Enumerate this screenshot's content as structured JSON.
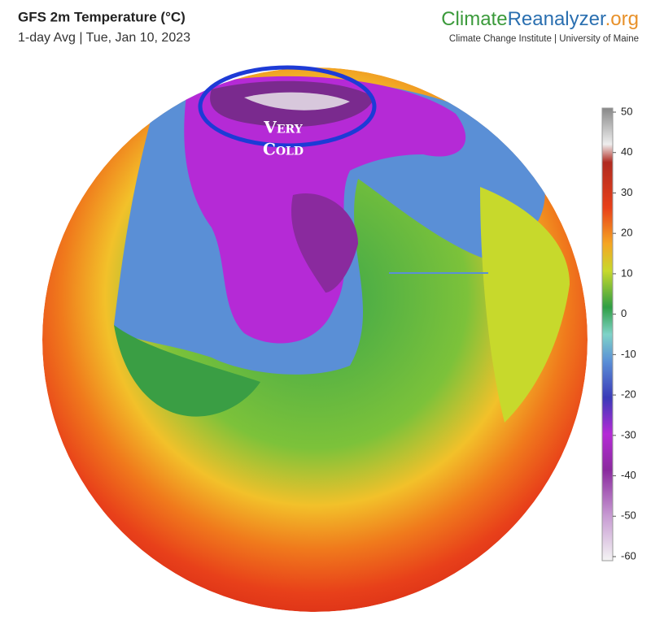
{
  "header": {
    "title": "GFS 2m Temperature (°C)",
    "subtitle": "1-day Avg | Tue, Jan 10, 2023"
  },
  "logo": {
    "parts": [
      "Climate",
      "Reanalyzer",
      ".org"
    ],
    "credit": "Climate Change Institute | University of Maine"
  },
  "annotation": {
    "lines": [
      "Very",
      "Cold"
    ]
  },
  "colorbar": {
    "lim": [
      -60,
      50
    ],
    "ticks": [
      50,
      40,
      30,
      20,
      10,
      0,
      -10,
      -20,
      -30,
      -40,
      -50,
      -60
    ]
  }
}
